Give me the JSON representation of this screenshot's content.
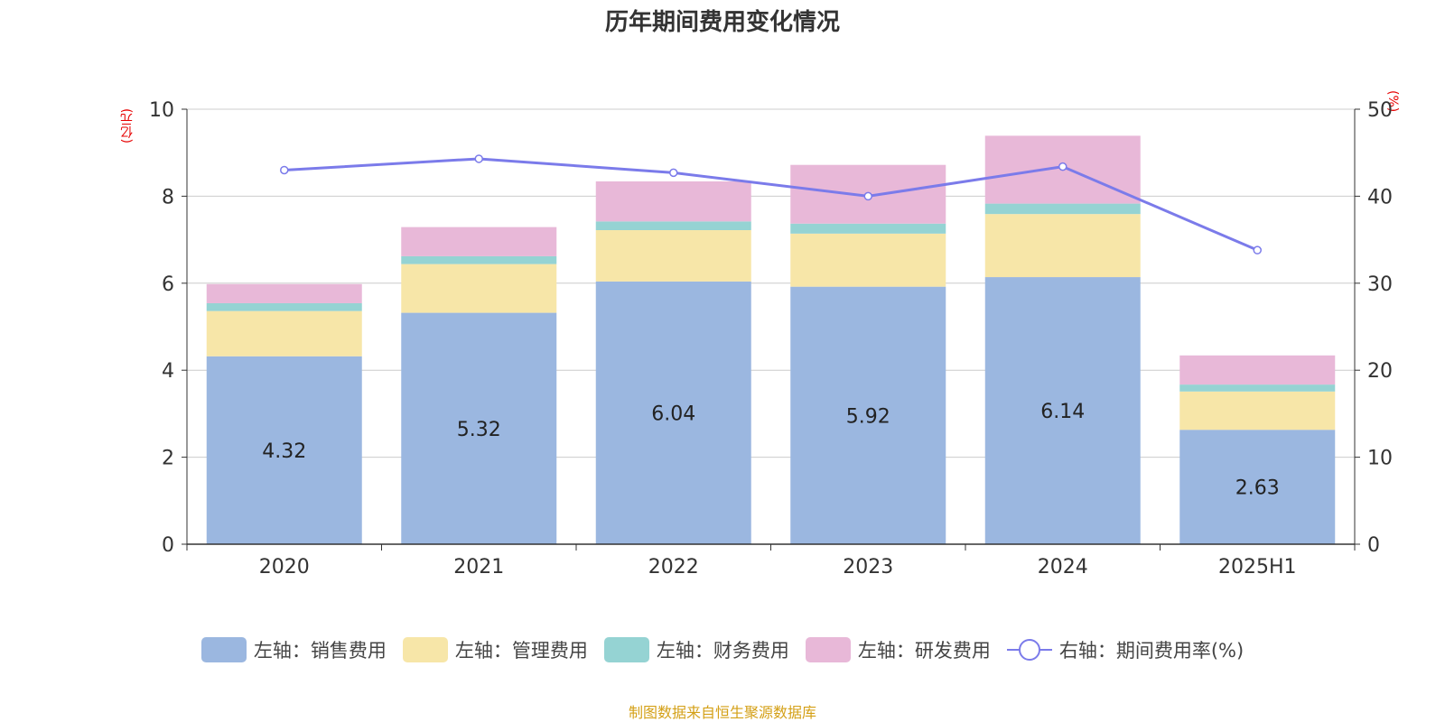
{
  "title": "历年期间费用变化情况",
  "left_unit": "(亿元)",
  "right_unit": "(%)",
  "source": "制图数据来自恒生聚源数据库",
  "colors": {
    "sales": "#9bb7e0",
    "admin": "#f7e6a8",
    "finance": "#95d3d3",
    "rnd": "#e8b8d8",
    "rate": "#7b7bea",
    "unit": "#e60000"
  },
  "legend": [
    {
      "label": "左轴：销售费用",
      "color": "#9bb7e0",
      "kind": "box"
    },
    {
      "label": "左轴：管理费用",
      "color": "#f7e6a8",
      "kind": "box"
    },
    {
      "label": "左轴：财务费用",
      "color": "#95d3d3",
      "kind": "box"
    },
    {
      "label": "左轴：研发费用",
      "color": "#e8b8d8",
      "kind": "box"
    },
    {
      "label": "右轴：期间费用率(%)",
      "color": "#7b7bea",
      "kind": "line"
    }
  ],
  "chart_data": {
    "type": "bar",
    "stacked": true,
    "categories": [
      "2020",
      "2021",
      "2022",
      "2023",
      "2024",
      "2025H1"
    ],
    "series": [
      {
        "name": "左轴：销售费用",
        "axis": "left",
        "values": [
          4.32,
          5.32,
          6.04,
          5.92,
          6.14,
          2.63
        ],
        "labels": [
          "4.32",
          "5.32",
          "6.04",
          "5.92",
          "6.14",
          "2.63"
        ]
      },
      {
        "name": "左轴：管理费用",
        "axis": "left",
        "values": [
          1.04,
          1.12,
          1.18,
          1.22,
          1.45,
          0.88
        ]
      },
      {
        "name": "左轴：财务费用",
        "axis": "left",
        "values": [
          0.18,
          0.18,
          0.2,
          0.23,
          0.24,
          0.16
        ]
      },
      {
        "name": "左轴：研发费用",
        "axis": "left",
        "values": [
          0.44,
          0.67,
          0.92,
          1.35,
          1.56,
          0.67
        ]
      },
      {
        "name": "右轴：期间费用率(%)",
        "axis": "right",
        "type": "line",
        "values": [
          43.0,
          44.3,
          42.7,
          40.0,
          43.4,
          33.8
        ]
      }
    ],
    "y_left": {
      "min": 0,
      "max": 10,
      "ticks": [
        "0",
        "2",
        "4",
        "6",
        "8",
        "10"
      ]
    },
    "y_right": {
      "min": 0,
      "max": 50,
      "ticks": [
        "0",
        "10",
        "20",
        "30",
        "40",
        "50"
      ]
    },
    "grid": true,
    "legend_position": "bottom"
  }
}
